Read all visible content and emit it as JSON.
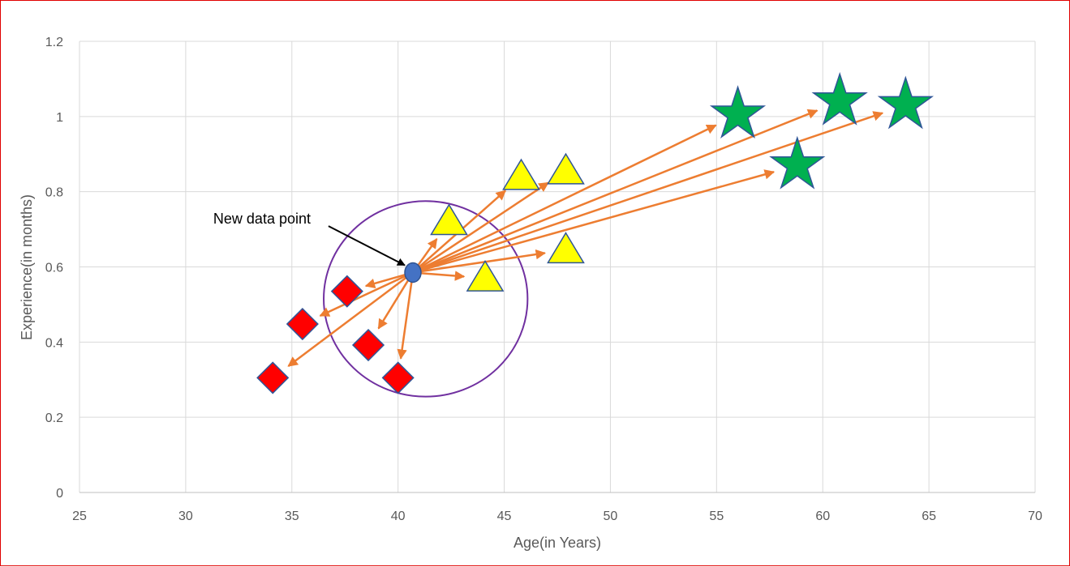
{
  "chart_data": {
    "type": "scatter",
    "title": "",
    "xlabel": "Age(in Years)",
    "ylabel": "Experience(in months)",
    "xlim": [
      25,
      70
    ],
    "ylim": [
      0,
      1.2
    ],
    "x_ticks": [
      25,
      30,
      35,
      40,
      45,
      50,
      55,
      60,
      65,
      70
    ],
    "y_ticks": [
      0,
      0.2,
      0.4,
      0.6,
      0.8,
      1,
      1.2
    ],
    "grid": true,
    "new_point": {
      "x": 40.7,
      "y": 0.585,
      "color": "#4472c4",
      "stroke": "#2f528f"
    },
    "annotation": {
      "text": "New data point",
      "x": 31.3,
      "y": 0.715
    },
    "circle": {
      "cx": 41.3,
      "cy": 0.515,
      "rx": 4.8,
      "ry": 0.26,
      "color": "#7030a0"
    },
    "arrow_color": "#ed7d31",
    "series": [
      {
        "marker": "diamond",
        "fill": "#ff0000",
        "stroke": "#2f5597",
        "points": [
          {
            "x": 34.1,
            "y": 0.305
          },
          {
            "x": 35.5,
            "y": 0.448
          },
          {
            "x": 37.6,
            "y": 0.535
          },
          {
            "x": 38.6,
            "y": 0.392
          },
          {
            "x": 40.0,
            "y": 0.305
          }
        ]
      },
      {
        "marker": "triangle",
        "fill": "#ffff00",
        "stroke": "#2f5597",
        "points": [
          {
            "x": 42.4,
            "y": 0.72
          },
          {
            "x": 44.1,
            "y": 0.57
          },
          {
            "x": 45.8,
            "y": 0.84
          },
          {
            "x": 47.9,
            "y": 0.855
          },
          {
            "x": 47.9,
            "y": 0.645
          }
        ]
      },
      {
        "marker": "star",
        "fill": "#00b050",
        "stroke": "#2f5597",
        "points": [
          {
            "x": 56.0,
            "y": 1.005
          },
          {
            "x": 58.8,
            "y": 0.87
          },
          {
            "x": 60.8,
            "y": 1.04
          },
          {
            "x": 63.9,
            "y": 1.03
          }
        ]
      }
    ]
  }
}
